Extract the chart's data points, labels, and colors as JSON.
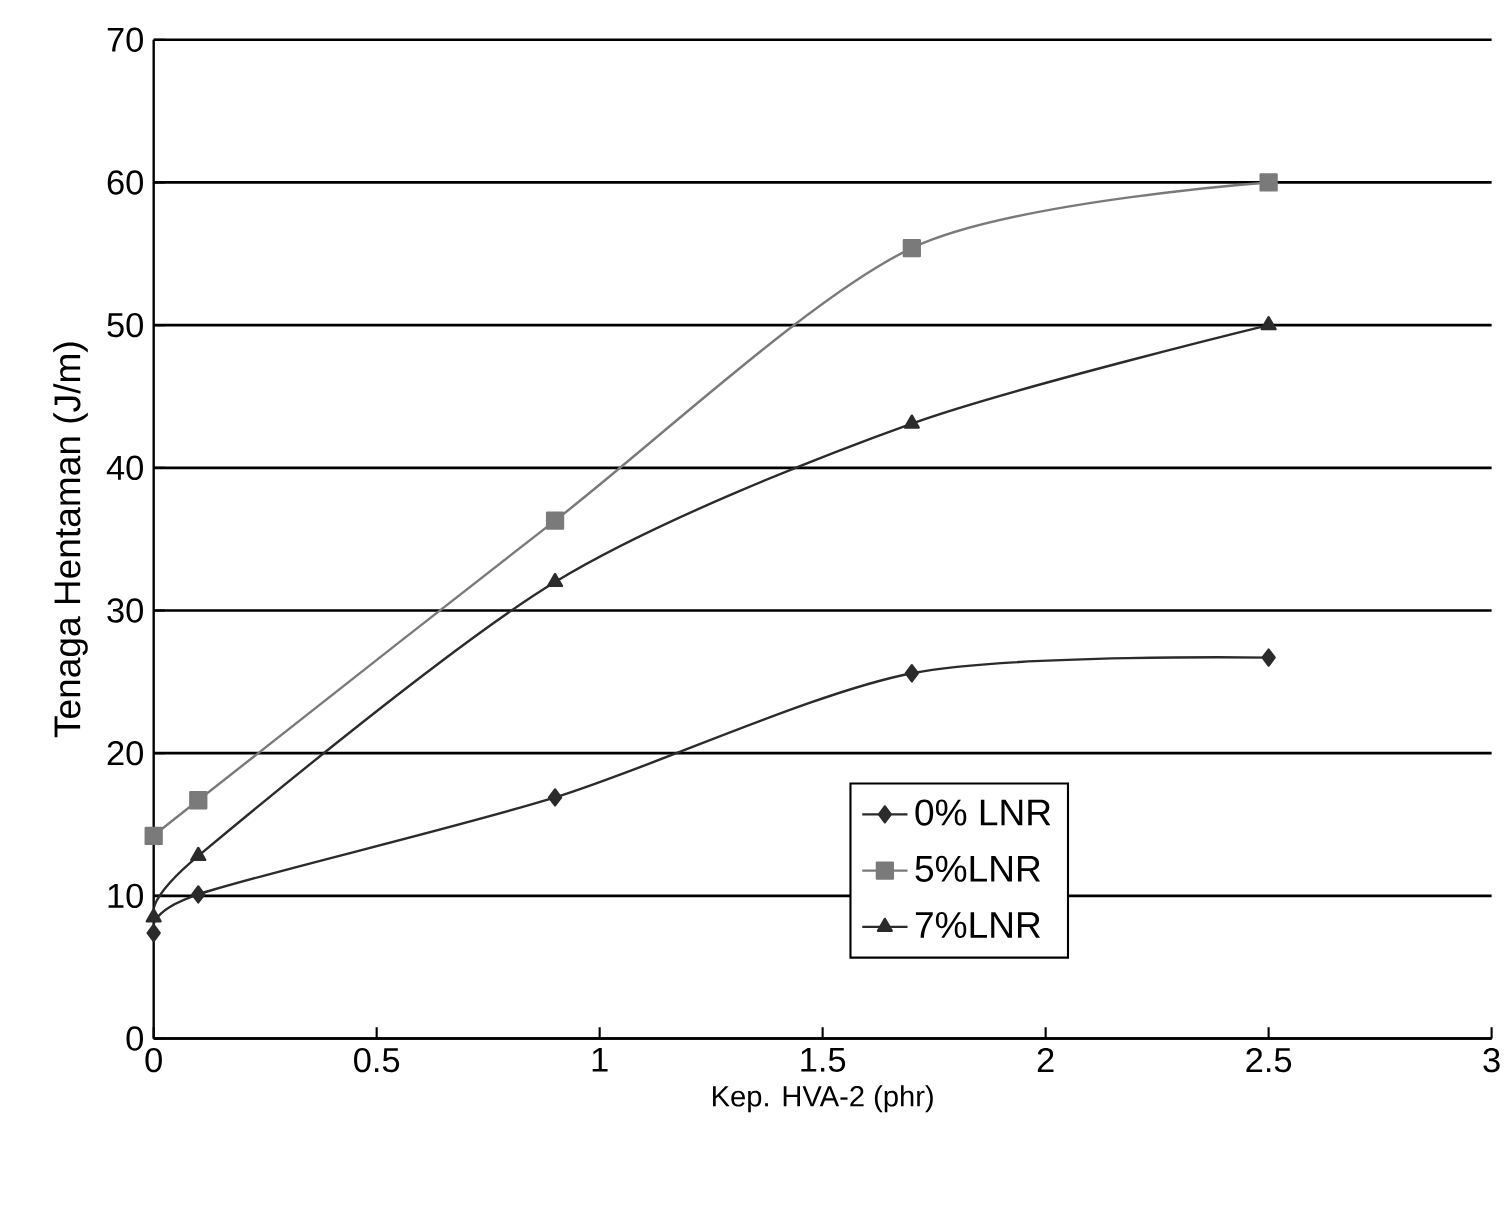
{
  "chart_data": {
    "type": "line",
    "xlabel": "Kep. HVA-2 (phr)",
    "ylabel": "Tenaga Hentaman (J/m)",
    "xlim": [
      0,
      3
    ],
    "ylim": [
      0,
      70
    ],
    "xticks": [
      0,
      0.5,
      1,
      1.5,
      2,
      2.5,
      3
    ],
    "yticks": [
      0,
      10,
      20,
      30,
      40,
      50,
      60,
      70
    ],
    "grid": "y",
    "legend": "bottom",
    "line_style": "solid",
    "series": [
      {
        "name": "0% LNR",
        "color": "#2b2b2b",
        "marker": "diamond",
        "x": [
          0,
          0.1,
          0.9,
          1.7,
          2.5
        ],
        "values": [
          7.4,
          10.1,
          16.9,
          25.6,
          26.7
        ]
      },
      {
        "name": "5%LNR",
        "color": "#7a7a7a",
        "marker": "square",
        "x": [
          0,
          0.1,
          0.9,
          1.7,
          2.5
        ],
        "values": [
          14.2,
          16.7,
          36.3,
          55.4,
          60
        ]
      },
      {
        "name": "7%LNR",
        "color": "#2b2b2b",
        "marker": "triangle",
        "x": [
          0,
          0.1,
          0.9,
          1.7,
          2.5
        ],
        "values": [
          8.5,
          12.8,
          32,
          43.1,
          50
        ]
      }
    ]
  }
}
